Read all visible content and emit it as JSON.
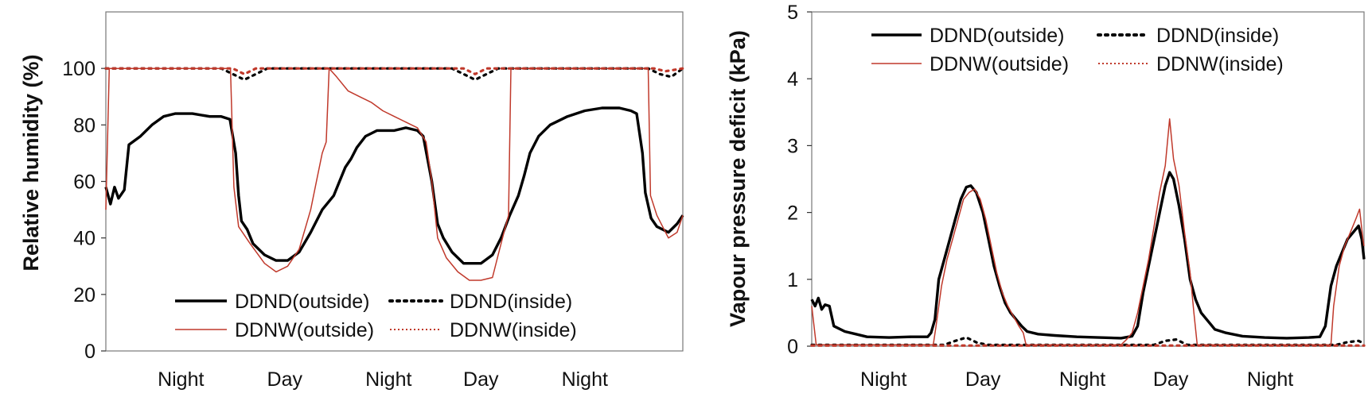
{
  "chart_data": [
    {
      "type": "line",
      "ylabel": "Relative humidity (%)",
      "xlabel": "",
      "ylim": [
        0,
        120
      ],
      "yticks": [
        0,
        20,
        40,
        60,
        80,
        100
      ],
      "xlim": [
        0,
        100
      ],
      "x_tick_labels": [
        {
          "label": "Night",
          "x": 13
        },
        {
          "label": "Day",
          "x": 31
        },
        {
          "label": "Night",
          "x": 49
        },
        {
          "label": "Day",
          "x": 65
        },
        {
          "label": "Night",
          "x": 83
        }
      ],
      "legend_position": "bottom-center",
      "series": [
        {
          "name": "DDND(outside)",
          "style": "solid-thick",
          "color": "#000000",
          "points": [
            [
              0,
              58
            ],
            [
              0.8,
              52
            ],
            [
              1.5,
              58
            ],
            [
              2.2,
              54
            ],
            [
              3.2,
              57
            ],
            [
              4,
              73
            ],
            [
              6,
              76
            ],
            [
              8,
              80
            ],
            [
              10,
              83
            ],
            [
              12,
              84
            ],
            [
              15,
              84
            ],
            [
              18,
              83
            ],
            [
              20,
              83
            ],
            [
              21.5,
              82
            ],
            [
              22.5,
              70
            ],
            [
              23,
              55
            ],
            [
              23.5,
              46
            ],
            [
              24.5,
              43
            ],
            [
              25.5,
              38
            ],
            [
              27.5,
              34
            ],
            [
              29.5,
              32
            ],
            [
              31.5,
              32
            ],
            [
              33.5,
              35
            ],
            [
              35.5,
              42
            ],
            [
              37.5,
              50
            ],
            [
              39.5,
              55
            ],
            [
              40.5,
              60
            ],
            [
              41.5,
              65
            ],
            [
              42.5,
              68
            ],
            [
              43.5,
              72
            ],
            [
              45,
              76
            ],
            [
              47,
              78
            ],
            [
              50,
              78
            ],
            [
              52,
              79
            ],
            [
              54,
              78
            ],
            [
              55,
              76
            ],
            [
              56.5,
              60
            ],
            [
              57.5,
              45
            ],
            [
              58.5,
              40
            ],
            [
              60,
              35
            ],
            [
              62,
              31
            ],
            [
              65,
              31
            ],
            [
              67,
              34
            ],
            [
              68.5,
              40
            ],
            [
              70,
              48
            ],
            [
              71.5,
              55
            ],
            [
              72.5,
              62
            ],
            [
              73.5,
              70
            ],
            [
              75,
              76
            ],
            [
              77,
              80
            ],
            [
              80,
              83
            ],
            [
              83,
              85
            ],
            [
              86,
              86
            ],
            [
              89,
              86
            ],
            [
              91,
              85
            ],
            [
              92,
              84
            ],
            [
              93,
              70
            ],
            [
              93.5,
              56
            ],
            [
              94.5,
              47
            ],
            [
              95.5,
              44
            ],
            [
              97.5,
              42
            ],
            [
              99,
              45
            ],
            [
              100,
              48
            ]
          ]
        },
        {
          "name": "DDND(inside)",
          "style": "dotted",
          "color": "#000000",
          "points": [
            [
              0,
              100
            ],
            [
              20,
              100
            ],
            [
              22,
              98
            ],
            [
              24,
              96
            ],
            [
              26,
              98
            ],
            [
              28,
              100
            ],
            [
              60,
              100
            ],
            [
              62,
              98
            ],
            [
              64,
              96
            ],
            [
              66,
              98
            ],
            [
              68,
              100
            ],
            [
              94,
              100
            ],
            [
              96,
              98
            ],
            [
              98,
              97
            ],
            [
              100,
              100
            ]
          ]
        },
        {
          "name": "DDNW(outside)",
          "style": "solid-thin",
          "color": "#c0392b",
          "points": [
            [
              0,
              50
            ],
            [
              0.6,
              100
            ],
            [
              21,
              100
            ],
            [
              21.6,
              100
            ],
            [
              22.2,
              58
            ],
            [
              23,
              44
            ],
            [
              25,
              38
            ],
            [
              27.5,
              31
            ],
            [
              29.5,
              28
            ],
            [
              31.5,
              30
            ],
            [
              33.5,
              36
            ],
            [
              35.5,
              50
            ],
            [
              36.5,
              60
            ],
            [
              37.5,
              70
            ],
            [
              38.2,
              74
            ],
            [
              38.7,
              100
            ],
            [
              40,
              97
            ],
            [
              42,
              92
            ],
            [
              44,
              90
            ],
            [
              46,
              88
            ],
            [
              48,
              85
            ],
            [
              50,
              83
            ],
            [
              52,
              81
            ],
            [
              54,
              79
            ],
            [
              55.5,
              74
            ],
            [
              56.5,
              60
            ],
            [
              57.5,
              40
            ],
            [
              59,
              33
            ],
            [
              61,
              28
            ],
            [
              63,
              25
            ],
            [
              65,
              25
            ],
            [
              67,
              26
            ],
            [
              68,
              34
            ],
            [
              69,
              42
            ],
            [
              69.8,
              48
            ],
            [
              70.2,
              100
            ],
            [
              94,
              100
            ],
            [
              94.4,
              55
            ],
            [
              95.5,
              48
            ],
            [
              97.5,
              40
            ],
            [
              99,
              42
            ],
            [
              100,
              48
            ]
          ]
        },
        {
          "name": "DDNW(inside)",
          "style": "dotted",
          "color": "#c0392b",
          "points": [
            [
              0,
              100
            ],
            [
              22,
              100
            ],
            [
              24,
              98
            ],
            [
              26,
              100
            ],
            [
              62,
              100
            ],
            [
              64,
              98
            ],
            [
              66,
              100
            ],
            [
              95,
              100
            ],
            [
              97,
              99
            ],
            [
              100,
              100
            ]
          ]
        }
      ]
    },
    {
      "type": "line",
      "ylabel": "Vapour pressure deficit (kPa)",
      "xlabel": "",
      "ylim": [
        0,
        5
      ],
      "yticks": [
        0,
        1,
        2,
        3,
        4,
        5
      ],
      "xlim": [
        0,
        100
      ],
      "x_tick_labels": [
        {
          "label": "Night",
          "x": 13
        },
        {
          "label": "Day",
          "x": 31
        },
        {
          "label": "Night",
          "x": 49
        },
        {
          "label": "Day",
          "x": 65
        },
        {
          "label": "Night",
          "x": 83
        }
      ],
      "legend_position": "top-center",
      "series": [
        {
          "name": "DDND(outside)",
          "style": "solid-thick",
          "color": "#000000",
          "points": [
            [
              0,
              0.7
            ],
            [
              0.6,
              0.6
            ],
            [
              1.2,
              0.72
            ],
            [
              1.8,
              0.55
            ],
            [
              2.4,
              0.62
            ],
            [
              3.2,
              0.6
            ],
            [
              4,
              0.3
            ],
            [
              6,
              0.22
            ],
            [
              8,
              0.18
            ],
            [
              10,
              0.14
            ],
            [
              14,
              0.13
            ],
            [
              18,
              0.14
            ],
            [
              21,
              0.14
            ],
            [
              21.6,
              0.2
            ],
            [
              22.3,
              0.4
            ],
            [
              23,
              1.0
            ],
            [
              24,
              1.3
            ],
            [
              25,
              1.6
            ],
            [
              26,
              1.9
            ],
            [
              27,
              2.2
            ],
            [
              28,
              2.38
            ],
            [
              28.8,
              2.4
            ],
            [
              29.8,
              2.3
            ],
            [
              31,
              2.0
            ],
            [
              32,
              1.6
            ],
            [
              33,
              1.2
            ],
            [
              34,
              0.9
            ],
            [
              35,
              0.65
            ],
            [
              36,
              0.5
            ],
            [
              37,
              0.4
            ],
            [
              38,
              0.3
            ],
            [
              39,
              0.22
            ],
            [
              41,
              0.18
            ],
            [
              44,
              0.16
            ],
            [
              48,
              0.14
            ],
            [
              52,
              0.13
            ],
            [
              56,
              0.12
            ],
            [
              58,
              0.15
            ],
            [
              59,
              0.3
            ],
            [
              60,
              0.8
            ],
            [
              61,
              1.2
            ],
            [
              62,
              1.6
            ],
            [
              63,
              2.0
            ],
            [
              64,
              2.4
            ],
            [
              64.8,
              2.6
            ],
            [
              65.5,
              2.5
            ],
            [
              66.5,
              2.1
            ],
            [
              67.5,
              1.6
            ],
            [
              68.5,
              1.0
            ],
            [
              69.5,
              0.7
            ],
            [
              70.5,
              0.5
            ],
            [
              71.5,
              0.4
            ],
            [
              73,
              0.25
            ],
            [
              75,
              0.2
            ],
            [
              78,
              0.15
            ],
            [
              82,
              0.13
            ],
            [
              86,
              0.12
            ],
            [
              90,
              0.13
            ],
            [
              92,
              0.14
            ],
            [
              93,
              0.3
            ],
            [
              94,
              0.9
            ],
            [
              95,
              1.2
            ],
            [
              96,
              1.4
            ],
            [
              97,
              1.6
            ],
            [
              98,
              1.7
            ],
            [
              99,
              1.8
            ],
            [
              99.6,
              1.6
            ],
            [
              100,
              1.3
            ]
          ]
        },
        {
          "name": "DDND(inside)",
          "style": "dotted",
          "color": "#000000",
          "points": [
            [
              0,
              0.02
            ],
            [
              24,
              0.02
            ],
            [
              26,
              0.08
            ],
            [
              28,
              0.13
            ],
            [
              30,
              0.05
            ],
            [
              32,
              0.02
            ],
            [
              62,
              0.02
            ],
            [
              64,
              0.08
            ],
            [
              66,
              0.1
            ],
            [
              68,
              0.02
            ],
            [
              95,
              0.02
            ],
            [
              97,
              0.06
            ],
            [
              99,
              0.08
            ],
            [
              100,
              0.04
            ]
          ]
        },
        {
          "name": "DDNW(outside)",
          "style": "solid-thin",
          "color": "#c0392b",
          "points": [
            [
              0,
              0.6
            ],
            [
              0.8,
              0.02
            ],
            [
              22,
              0.02
            ],
            [
              22.5,
              0.3
            ],
            [
              23.5,
              0.9
            ],
            [
              24.5,
              1.3
            ],
            [
              25.5,
              1.6
            ],
            [
              26.5,
              1.9
            ],
            [
              27.5,
              2.2
            ],
            [
              28.5,
              2.3
            ],
            [
              29.5,
              2.35
            ],
            [
              30.5,
              2.2
            ],
            [
              31.5,
              1.9
            ],
            [
              32.5,
              1.5
            ],
            [
              33.5,
              1.1
            ],
            [
              34.5,
              0.8
            ],
            [
              35.5,
              0.6
            ],
            [
              36.5,
              0.45
            ],
            [
              37.5,
              0.3
            ],
            [
              38.3,
              0.2
            ],
            [
              38.8,
              0.02
            ],
            [
              56,
              0.02
            ],
            [
              57,
              0.1
            ],
            [
              58,
              0.2
            ],
            [
              59,
              0.5
            ],
            [
              60,
              0.9
            ],
            [
              61,
              1.3
            ],
            [
              62,
              1.8
            ],
            [
              63,
              2.3
            ],
            [
              64,
              2.7
            ],
            [
              64.8,
              3.4
            ],
            [
              65.5,
              2.8
            ],
            [
              66.5,
              2.4
            ],
            [
              67.5,
              1.7
            ],
            [
              68.5,
              1.1
            ],
            [
              69.2,
              0.5
            ],
            [
              69.8,
              0.02
            ],
            [
              94,
              0.02
            ],
            [
              94.5,
              0.6
            ],
            [
              95.5,
              1.2
            ],
            [
              96.5,
              1.5
            ],
            [
              97.5,
              1.7
            ],
            [
              98.5,
              1.9
            ],
            [
              99.2,
              2.05
            ],
            [
              99.8,
              1.6
            ],
            [
              100,
              1.5
            ]
          ]
        },
        {
          "name": "DDNW(inside)",
          "style": "dotted",
          "color": "#c0392b",
          "points": [
            [
              0,
              0.01
            ],
            [
              100,
              0.01
            ]
          ]
        }
      ]
    }
  ]
}
